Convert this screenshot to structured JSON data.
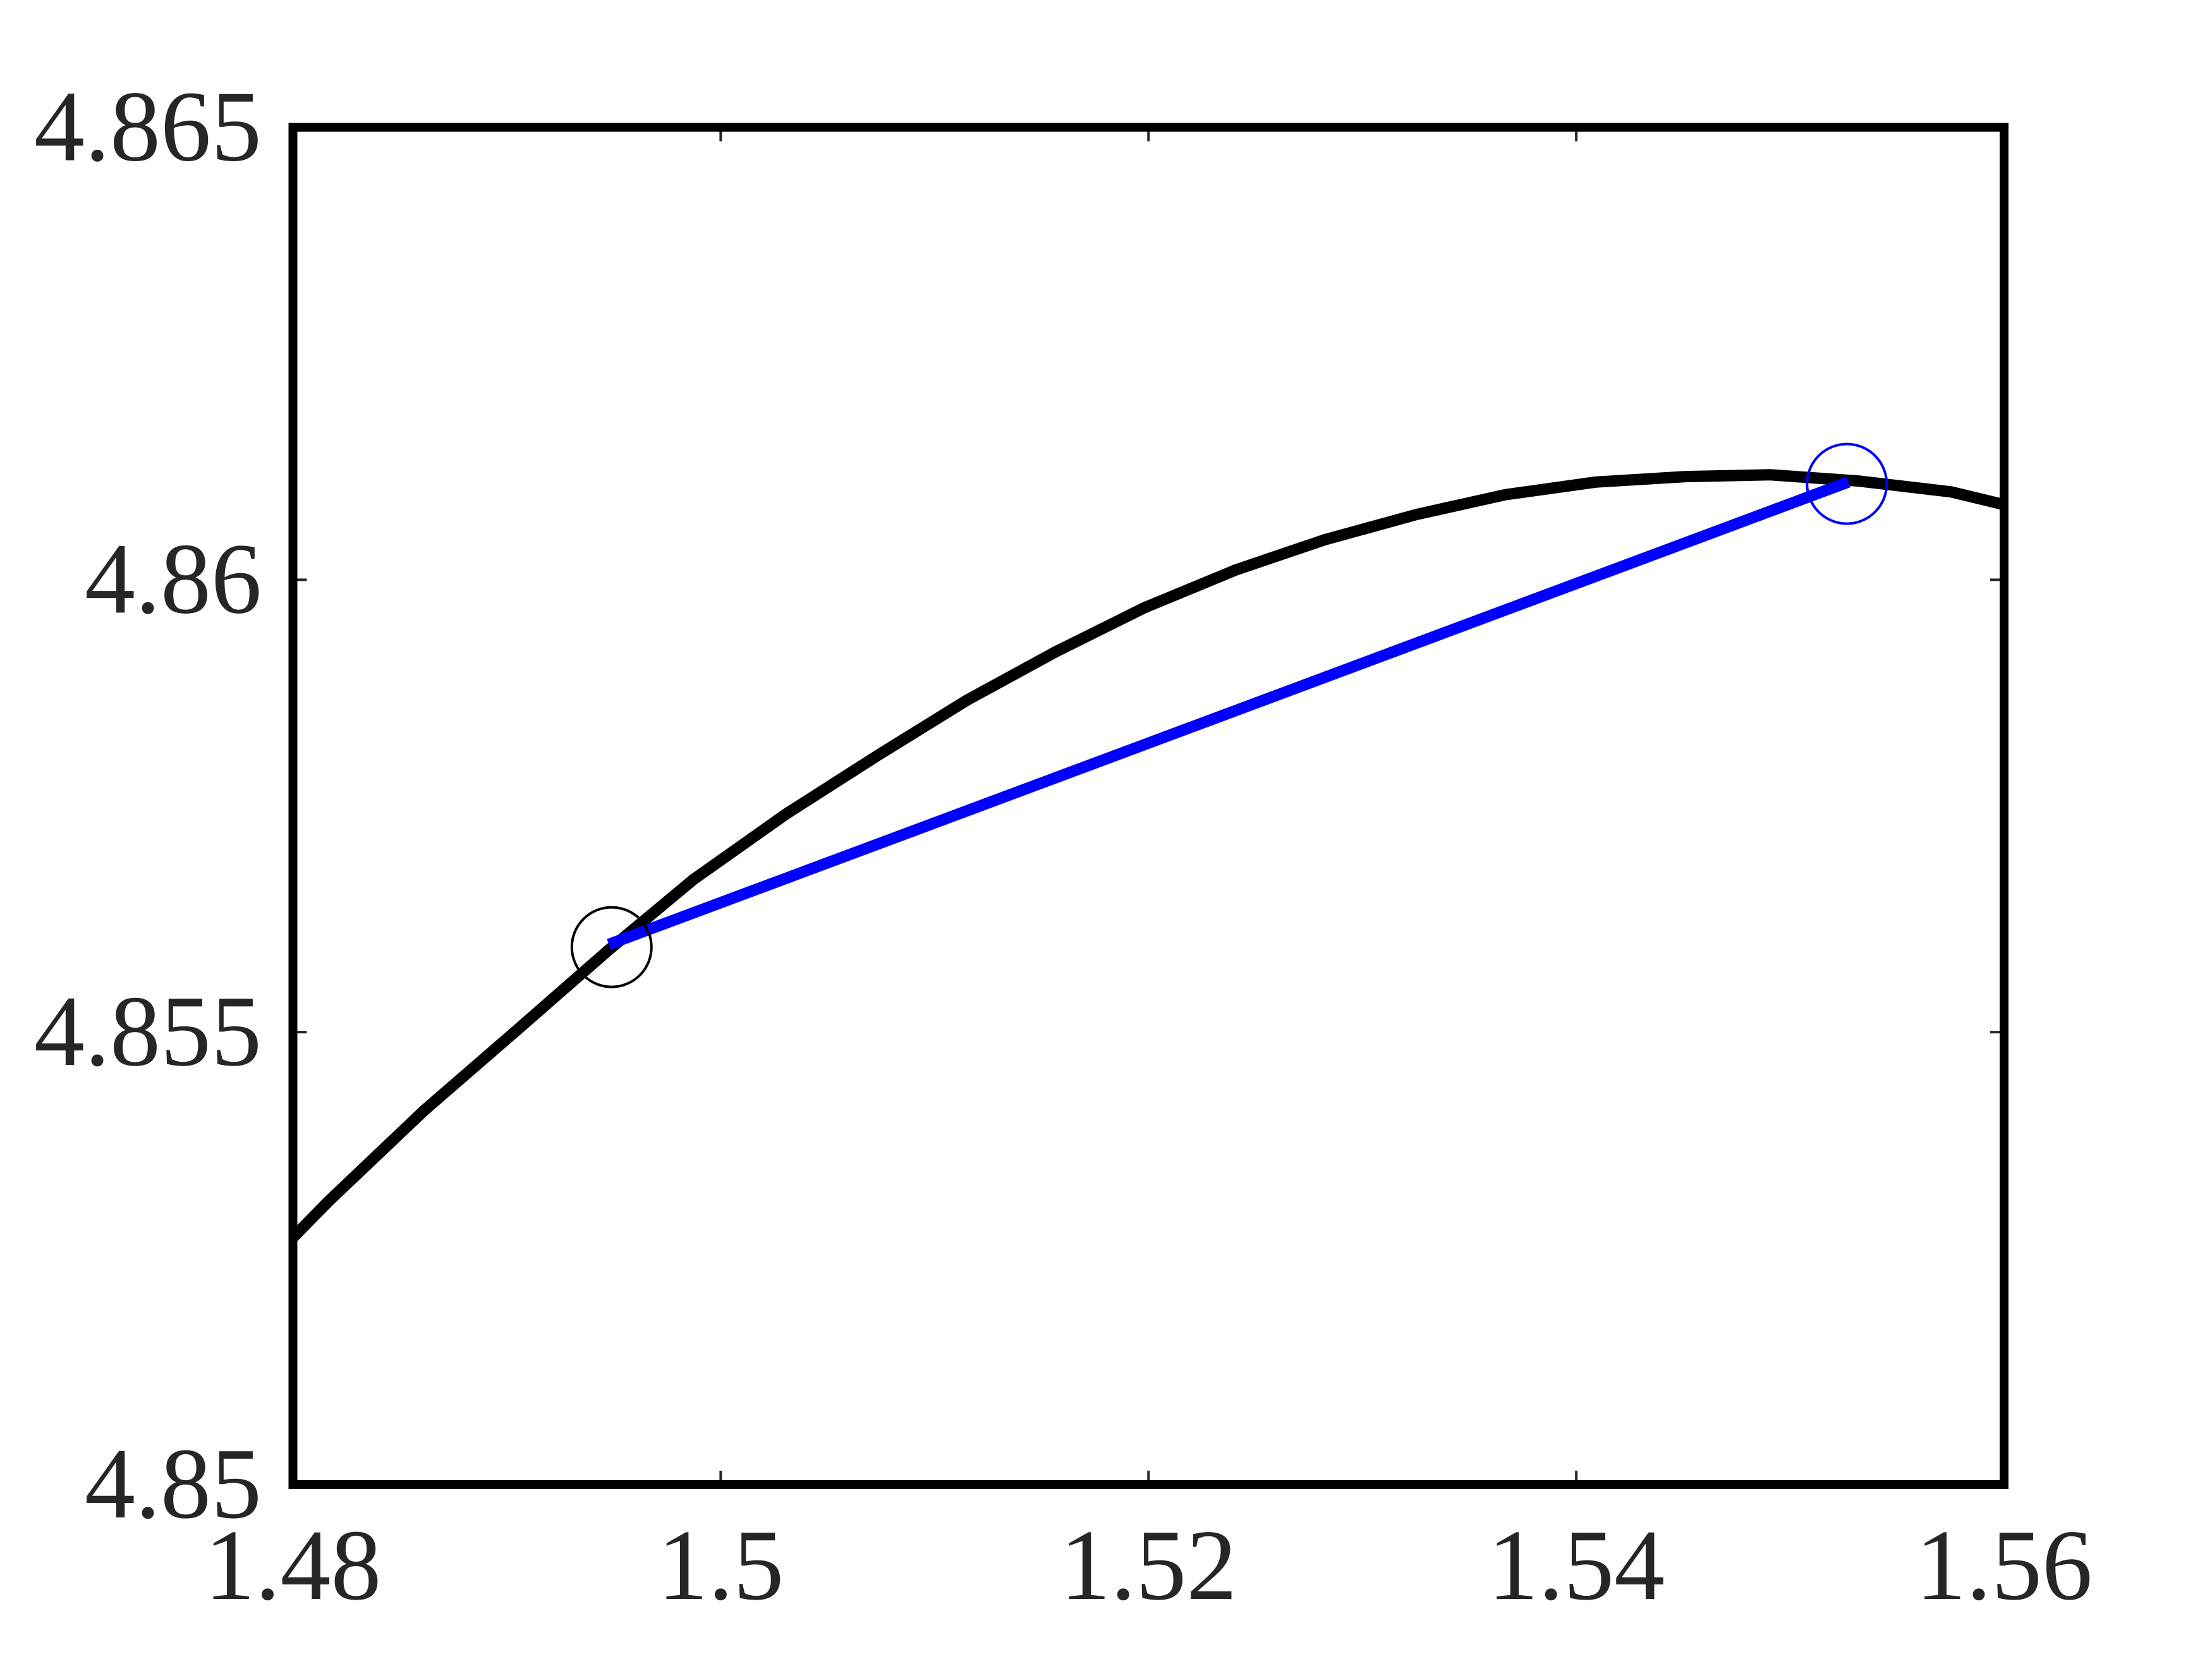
{
  "chart_data": {
    "type": "line",
    "xlim": [
      1.48,
      1.56
    ],
    "ylim": [
      4.85,
      4.865
    ],
    "xticks": [
      1.48,
      1.5,
      1.52,
      1.54,
      1.56
    ],
    "yticks": [
      4.85,
      4.855,
      4.86,
      4.865
    ],
    "grid": false,
    "series": [
      {
        "color": "#000000",
        "style": "line",
        "x": [
          1.48,
          1.48166,
          1.48616,
          1.49046,
          1.49477,
          1.49874,
          1.50305,
          1.50735,
          1.51152,
          1.51563,
          1.5198,
          1.5241,
          1.52821,
          1.53251,
          1.53668,
          1.54093,
          1.5451,
          1.54907,
          1.55325,
          1.55755,
          1.56
        ],
        "values": [
          4.85273,
          4.85313,
          4.85414,
          4.85502,
          4.85591,
          4.85669,
          4.85741,
          4.85806,
          4.85867,
          4.8592,
          4.85969,
          4.86011,
          4.86044,
          4.86072,
          4.86094,
          4.86108,
          4.86114,
          4.86116,
          4.86109,
          4.86097,
          4.86083
        ]
      },
      {
        "color": "#0000ff",
        "style": "line",
        "x": [
          1.49477,
          1.55272
        ],
        "values": [
          4.85597,
          4.86108
        ]
      },
      {
        "color": "#000000",
        "style": "circle",
        "x": [
          1.4949
        ],
        "values": [
          4.85594
        ]
      },
      {
        "color": "#0000ff",
        "style": "circle",
        "x": [
          1.55265
        ],
        "values": [
          4.86106
        ]
      }
    ]
  }
}
